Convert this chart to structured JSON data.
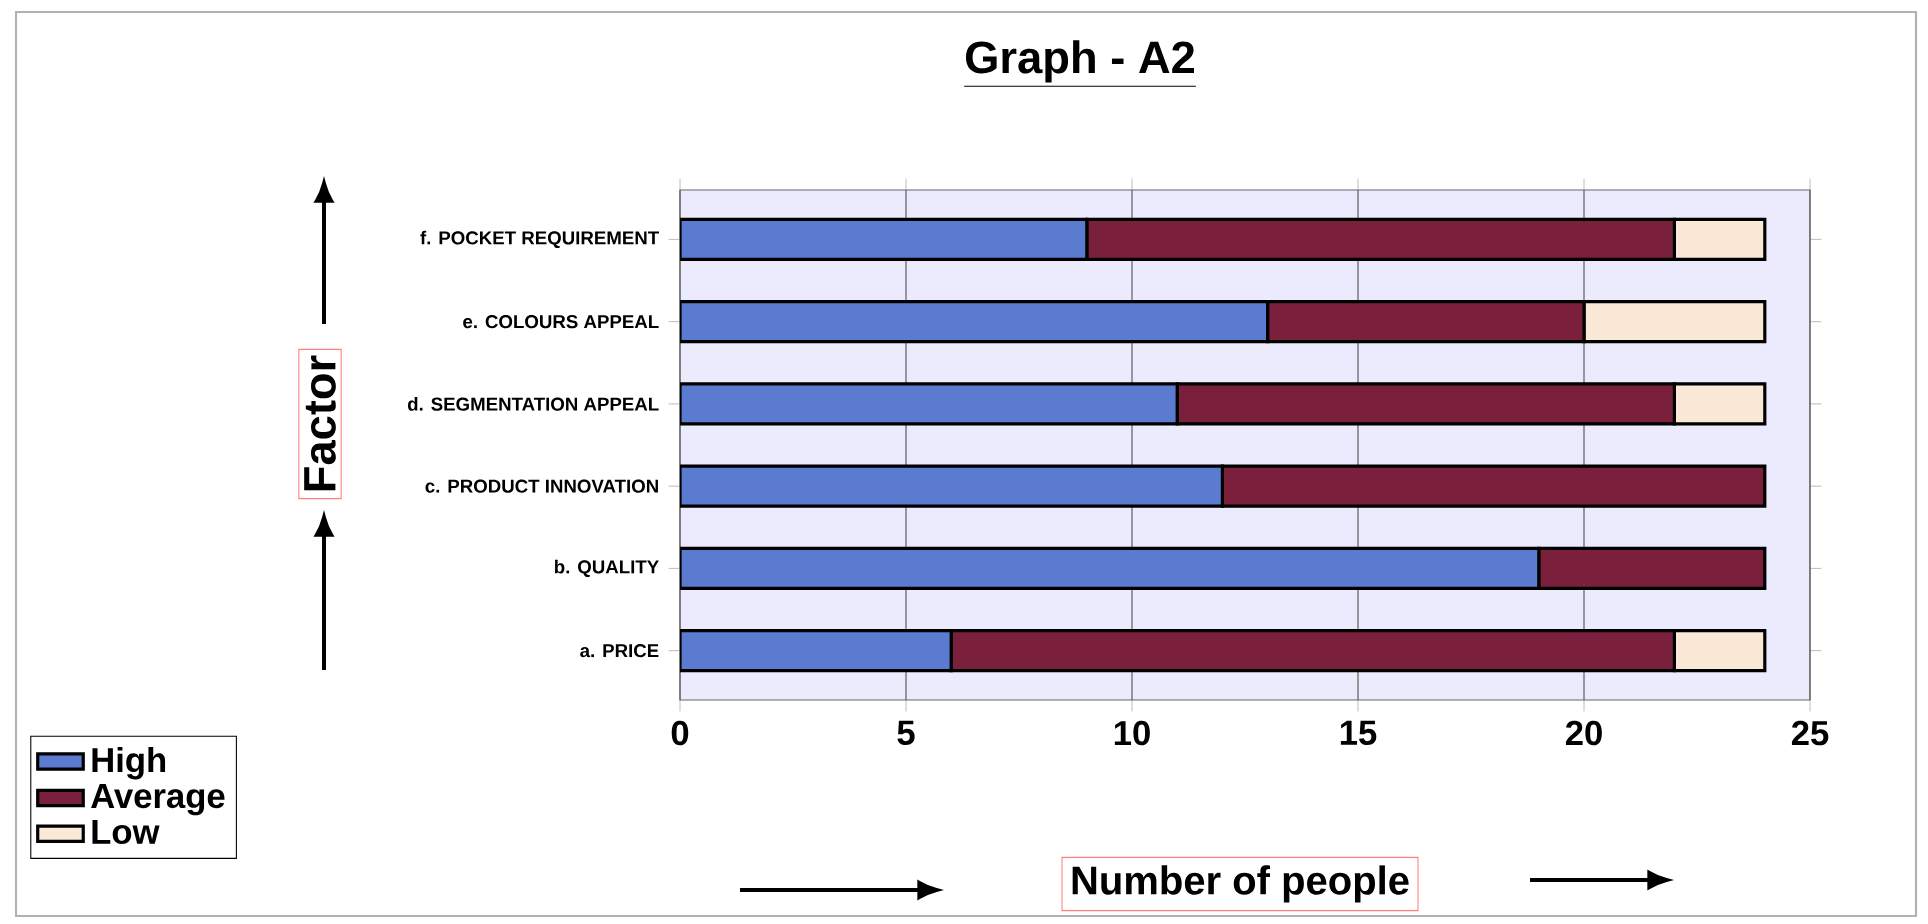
{
  "chart_data": {
    "type": "bar",
    "orientation": "horizontal",
    "stacked": true,
    "title": "Graph - A2",
    "xlabel": "Number of people",
    "ylabel": "Factor",
    "categories": [
      "f. POCKET REQUIREMENT",
      "e. COLOURS APPEAL",
      "d. SEGMENTATION APPEAL",
      "c. PRODUCT INNOVATION",
      "b. QUALITY",
      "a. PRICE"
    ],
    "series": [
      {
        "name": "High",
        "color": "#5a7bd0",
        "values": [
          9,
          13,
          11,
          12,
          19,
          6
        ]
      },
      {
        "name": "Average",
        "color": "#7a1f3c",
        "values": [
          13,
          7,
          11,
          12,
          5,
          16
        ]
      },
      {
        "name": "Low",
        "color": "#fbe9d8",
        "values": [
          2,
          4,
          2,
          0,
          0,
          2
        ]
      }
    ],
    "xlim": [
      0,
      25
    ],
    "xticks": [
      0,
      5,
      10,
      15,
      20,
      25
    ],
    "grid": "x",
    "legend": "bottom left"
  }
}
